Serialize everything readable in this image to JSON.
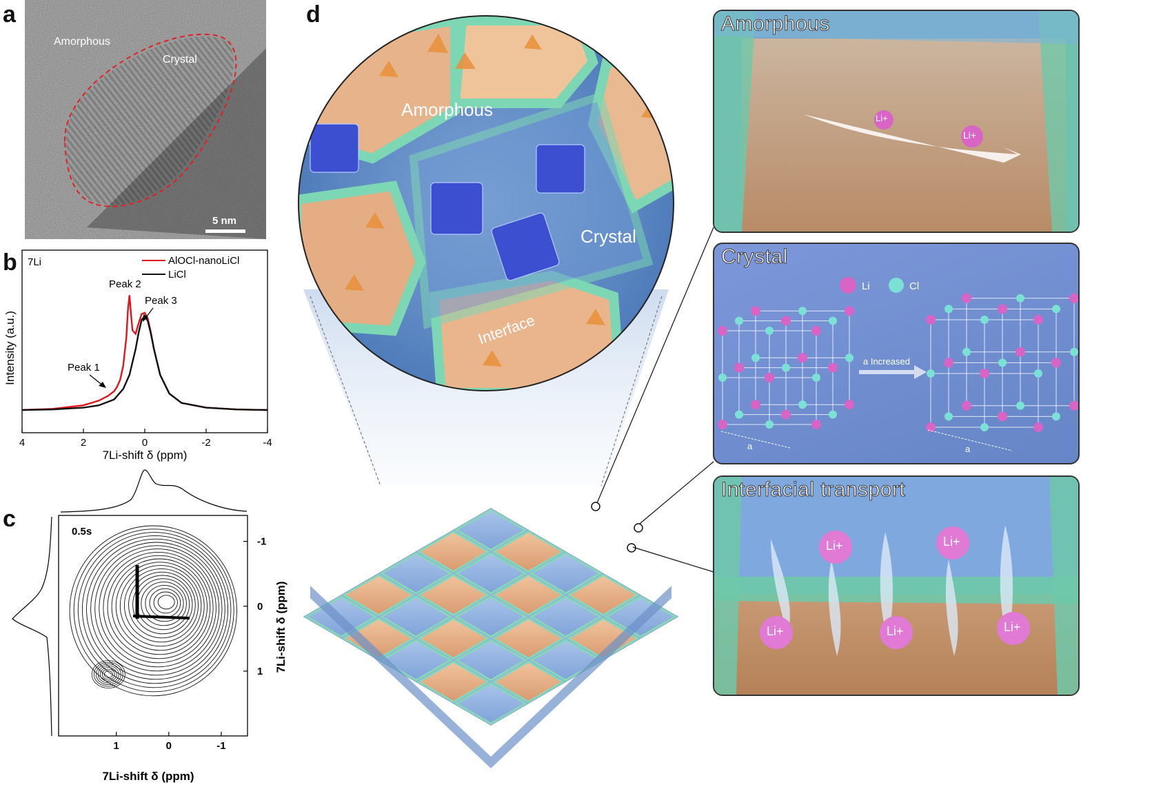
{
  "panels": {
    "a": {
      "letter": "a",
      "label_amorphous": "Amorphous",
      "label_crystal": "Crystal",
      "scale_bar": "5 nm"
    },
    "b": {
      "letter": "b",
      "nucleus": "7Li",
      "ylabel": "Intensity (a.u.)",
      "xlabel": "7Li-shift δ (ppm)",
      "annotations": [
        "Peak 1",
        "Peak 2",
        "Peak 3"
      ]
    },
    "c": {
      "letter": "c",
      "time_label": "0.5s",
      "xlabel": "7Li-shift δ (ppm)",
      "ylabel": "7Li-shift δ (ppm)"
    },
    "d": {
      "letter": "d",
      "zoom_labels": {
        "amorphous": "Amorphous",
        "crystal": "Crystal",
        "interface": "Interface"
      },
      "frame_amorphous": {
        "title": "Amorphous",
        "ion_labels": [
          "Li+",
          "Li+"
        ]
      },
      "frame_crystal": {
        "title": "Crystal",
        "legend_li": "Li",
        "legend_cl": "Cl",
        "arrow_label": "a Increased",
        "lattice_label_left": "a",
        "lattice_label_right": "a"
      },
      "frame_interface": {
        "title": "Interfacial transport",
        "ion_labels": [
          "Li+",
          "Li+",
          "Li+",
          "Li+",
          "Li+"
        ]
      }
    }
  },
  "chart_data": [
    {
      "type": "line",
      "title": "",
      "xlabel": "7Li-shift δ (ppm)",
      "ylabel": "Intensity (a.u.)",
      "xlim": [
        4,
        -4
      ],
      "xticks": [
        4,
        2,
        0,
        -2,
        -4
      ],
      "legend_position": "top-right",
      "series": [
        {
          "name": "AlOCl-nanoLiCl",
          "color": "#e2141c",
          "x": [
            4.0,
            3.0,
            2.0,
            1.5,
            1.2,
            1.0,
            0.9,
            0.8,
            0.7,
            0.6,
            0.55,
            0.5,
            0.45,
            0.4,
            0.3,
            0.2,
            0.1,
            0.0,
            -0.1,
            -0.2,
            -0.3,
            -0.5,
            -0.8,
            -1.2,
            -2.0,
            -3.0,
            -4.0
          ],
          "y": [
            0.0,
            0.01,
            0.04,
            0.08,
            0.12,
            0.16,
            0.2,
            0.26,
            0.38,
            0.62,
            0.85,
            0.98,
            0.82,
            0.68,
            0.65,
            0.74,
            0.82,
            0.83,
            0.78,
            0.66,
            0.52,
            0.3,
            0.14,
            0.06,
            0.02,
            0.005,
            0.0
          ]
        },
        {
          "name": "LiCl",
          "color": "#111111",
          "x": [
            4.0,
            3.0,
            2.0,
            1.5,
            1.0,
            0.7,
            0.5,
            0.3,
            0.2,
            0.1,
            0.0,
            -0.1,
            -0.2,
            -0.3,
            -0.5,
            -0.8,
            -1.2,
            -2.0,
            -3.0,
            -4.0
          ],
          "y": [
            0.0,
            0.005,
            0.02,
            0.04,
            0.09,
            0.18,
            0.3,
            0.52,
            0.66,
            0.77,
            0.8,
            0.76,
            0.65,
            0.52,
            0.3,
            0.14,
            0.06,
            0.02,
            0.005,
            0.0
          ]
        }
      ]
    },
    {
      "type": "heatmap",
      "title": "",
      "xlabel": "7Li-shift δ (ppm)",
      "ylabel": "7Li-shift δ (ppm)",
      "xlim": [
        2.1,
        -1.5
      ],
      "ylim": [
        -1.4,
        2.0
      ],
      "xticks": [
        1,
        0,
        -1
      ],
      "yticks": [
        -1,
        0,
        1
      ],
      "annotation": "0.5s",
      "contour_center_ppm": [
        0.1,
        0.0
      ],
      "diagonal_peak_ppm": [
        0.5,
        0.5
      ]
    }
  ]
}
